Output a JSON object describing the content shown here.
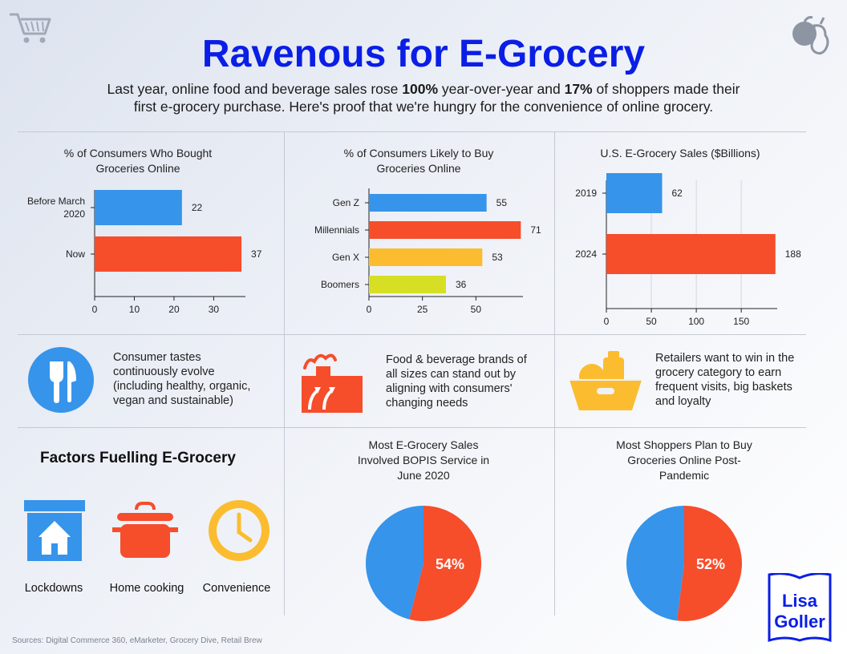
{
  "header": {
    "title": "Ravenous for E-Grocery",
    "subtitle_line1_a": "Last year, online food and beverage sales rose ",
    "subtitle_line1_b": "100%",
    "subtitle_line1_c": " year-over-year and ",
    "subtitle_line1_d": "17%",
    "subtitle_line1_e": " of shoppers made their",
    "subtitle_line2": "first e-grocery purchase. Here's proof that we're hungry for the convenience of online grocery."
  },
  "icons": {
    "top_left": "shopping-cart-icon",
    "top_right": "apple-pear-icon",
    "note1": "fork-knife-icon",
    "note2": "factory-icon",
    "note3": "basket-icon",
    "factor1": "house-icon",
    "factor2": "cooking-pot-icon",
    "factor3": "clock-icon"
  },
  "colors": {
    "title": "#0a1ee6",
    "blue": "#3694ea",
    "red": "#f64d2b",
    "yellow": "#fbbd2f",
    "lime": "#d7df25"
  },
  "chart_data": [
    {
      "type": "bar",
      "orientation": "horizontal",
      "title_line1": "% of Consumers Who Bought",
      "title_line2": "Groceries Online",
      "categories": [
        "Before March 2020",
        "Now"
      ],
      "category_lines": [
        [
          "Before March",
          "2020"
        ],
        [
          "Now"
        ]
      ],
      "values": [
        22,
        37
      ],
      "colors": [
        "#3694ea",
        "#f64d2b"
      ],
      "xlim": [
        0,
        38
      ],
      "xticks": [
        0,
        10,
        20,
        30
      ]
    },
    {
      "type": "bar",
      "orientation": "horizontal",
      "title_line1": "% of Consumers Likely to Buy",
      "title_line2": "Groceries Online",
      "categories": [
        "Gen Z",
        "Millennials",
        "Gen X",
        "Boomers"
      ],
      "category_lines": [
        [
          "Gen Z"
        ],
        [
          "Millennials"
        ],
        [
          "Gen X"
        ],
        [
          "Boomers"
        ]
      ],
      "values": [
        55,
        71,
        53,
        36
      ],
      "colors": [
        "#3694ea",
        "#f64d2b",
        "#fbbd2f",
        "#d7df25"
      ],
      "xlim": [
        0,
        72
      ],
      "xticks": [
        0,
        25,
        50
      ]
    },
    {
      "type": "bar",
      "orientation": "horizontal",
      "title_line1": "U.S. E-Grocery Sales ($Billions)",
      "title_line2": "",
      "categories": [
        "2019",
        "2024"
      ],
      "category_lines": [
        [
          "2019"
        ],
        [
          "2024"
        ]
      ],
      "values": [
        62,
        188
      ],
      "colors": [
        "#3694ea",
        "#f64d2b"
      ],
      "xlim": [
        0,
        190
      ],
      "xticks": [
        0,
        50,
        100,
        150
      ],
      "grid": true
    },
    {
      "type": "pie",
      "title_lines": [
        "Most E-Grocery Sales",
        "Involved BOPIS Service in",
        "June 2020"
      ],
      "values": [
        54,
        46
      ],
      "label": "54%",
      "colors": [
        "#f64d2b",
        "#3694ea"
      ]
    },
    {
      "type": "pie",
      "title_lines": [
        "Most Shoppers Plan to Buy",
        "Groceries Online Post-",
        "Pandemic"
      ],
      "values": [
        52,
        48
      ],
      "label": "52%",
      "colors": [
        "#f64d2b",
        "#3694ea"
      ]
    }
  ],
  "notes": [
    [
      "Consumer tastes",
      "continuously evolve",
      "(including healthy, organic,",
      "vegan and sustainable)"
    ],
    [
      "Food & beverage brands of",
      "all sizes can stand out by",
      "aligning with consumers'",
      "changing needs"
    ],
    [
      "Retailers want to win in the",
      "grocery category to earn",
      "frequent visits, big baskets",
      "and loyalty"
    ]
  ],
  "factors": {
    "title": "Factors Fuelling E-Grocery",
    "items": [
      "Lockdowns",
      "Home cooking",
      "Convenience"
    ]
  },
  "footer": {
    "sources": "Sources: Digital Commerce 360, eMarketer, Grocery Dive, Retail Brew",
    "logo_line1": "Lisa",
    "logo_line2": "Goller"
  }
}
